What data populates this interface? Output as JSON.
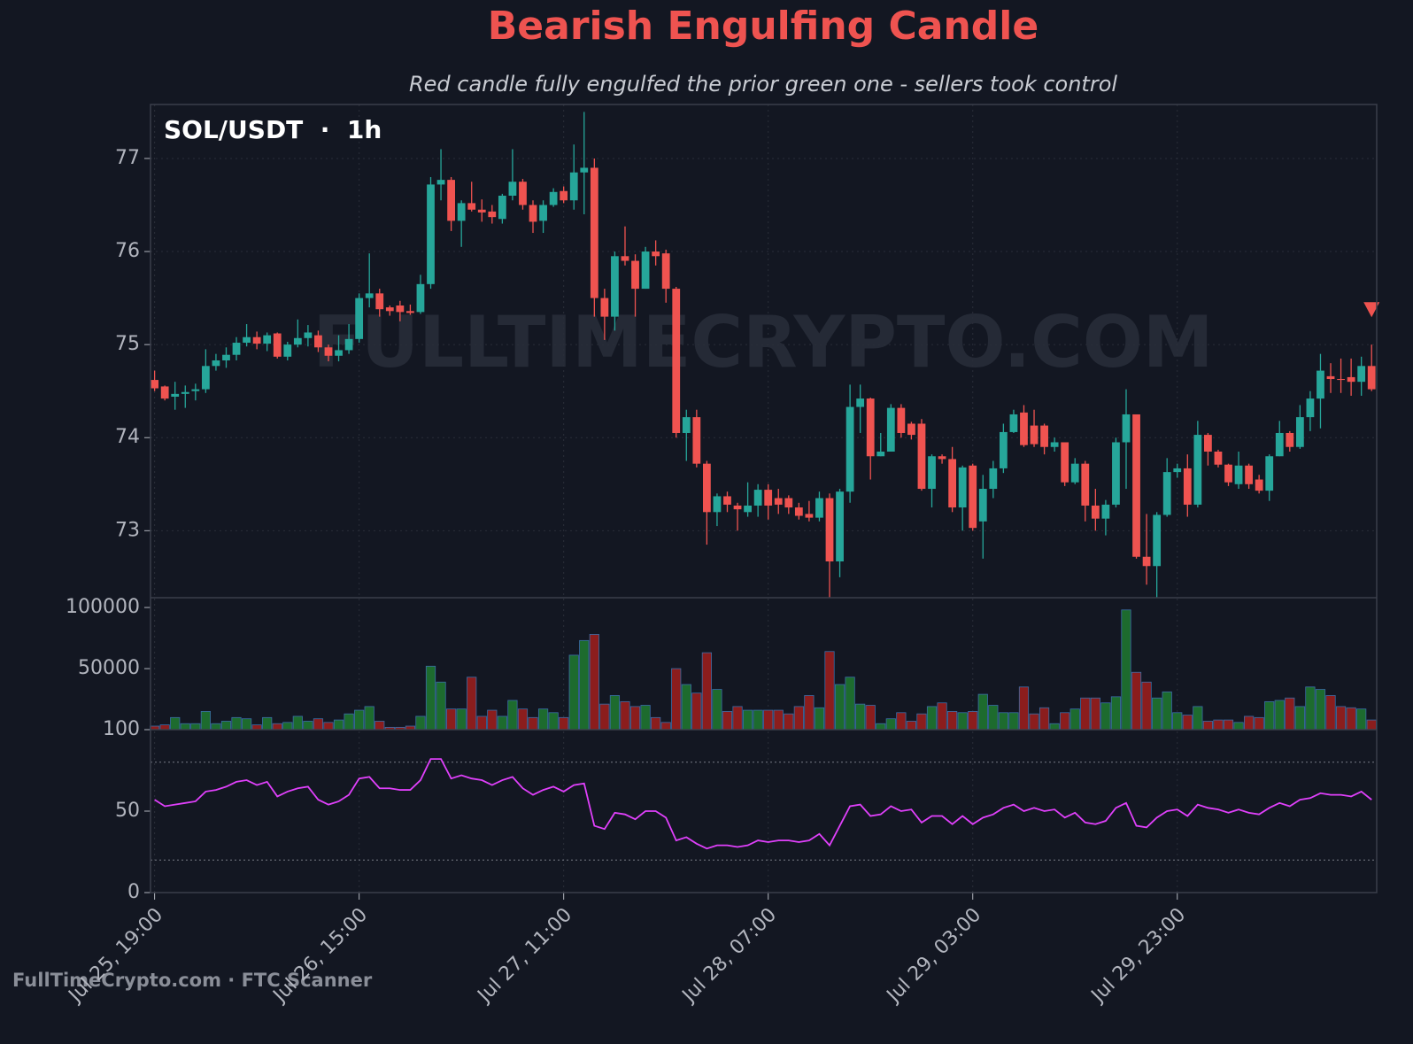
{
  "chart_data": {
    "type": "candlestick",
    "title": "Bearish Engulfing Candle",
    "subtitle": "Red candle fully engulfed the prior green one - sellers took control",
    "symbol_label": "SOL/USDT  ·  1h",
    "watermark": "FULLTIMECRYPTO.COM",
    "footer": "FullTimeCrypto.com · FTC Scanner",
    "up_color": "#26a69a",
    "down_color": "#ef5350",
    "volume_up_color": "#1d6b2e",
    "volume_down_color": "#8b1d1d",
    "rsi_color": "#e040fb",
    "xlim": [
      -0.4,
      119.5
    ],
    "xticks": [
      {
        "value": 0,
        "label": "Jul 25, 19:00"
      },
      {
        "value": 20,
        "label": "Jul 26, 15:00"
      },
      {
        "value": 40,
        "label": "Jul 27, 11:00"
      },
      {
        "value": 60,
        "label": "Jul 28, 07:00"
      },
      {
        "value": 80,
        "label": "Jul 29, 03:00"
      },
      {
        "value": 100,
        "label": "Jul 29, 23:00"
      }
    ],
    "ylim": [
      72.28,
      77.58
    ],
    "yticks": [
      73,
      74,
      75,
      76,
      77
    ],
    "volume_ylim": [
      100,
      108000
    ],
    "volume_yticks": [
      100,
      50000,
      100000
    ],
    "rsi_ylim": [
      0,
      100
    ],
    "rsi_yticks": [
      0,
      50
    ],
    "rsi_levels": [
      20,
      80
    ],
    "grid": true,
    "open": [
      74.62,
      74.55,
      74.44,
      74.47,
      74.5,
      74.52,
      74.77,
      74.83,
      74.89,
      75.02,
      75.08,
      75.01,
      75.12,
      74.87,
      75.0,
      75.07,
      75.1,
      74.97,
      74.88,
      74.94,
      75.06,
      75.5,
      75.55,
      75.4,
      75.42,
      75.36,
      75.35,
      75.65,
      76.72,
      76.77,
      76.33,
      76.52,
      76.45,
      76.43,
      76.35,
      76.6,
      76.75,
      76.5,
      76.33,
      76.5,
      76.65,
      76.55,
      76.85,
      76.9,
      75.5,
      75.3,
      75.95,
      75.9,
      75.6,
      76.0,
      75.98,
      75.6,
      74.05,
      74.22,
      73.72,
      73.2,
      73.37,
      73.27,
      73.2,
      73.27,
      73.44,
      73.35,
      73.35,
      73.25,
      73.18,
      73.14,
      73.35,
      72.67,
      73.42,
      74.33,
      74.42,
      73.8,
      73.85,
      74.32,
      74.15,
      74.15,
      73.45,
      73.8,
      73.77,
      73.25,
      73.7,
      73.1,
      73.45,
      73.67,
      74.06,
      74.27,
      74.13,
      74.13,
      73.9,
      73.95,
      73.52,
      73.72,
      73.27,
      73.13,
      73.28,
      73.95,
      74.25,
      72.72,
      72.62,
      73.17,
      73.63,
      73.67,
      73.28,
      74.03,
      73.85,
      73.71,
      73.5,
      73.7,
      73.55,
      73.43,
      73.8,
      74.05,
      73.9,
      74.22,
      74.42,
      74.66,
      74.63,
      74.65,
      74.6,
      74.77
    ],
    "high": [
      74.72,
      74.56,
      74.6,
      74.56,
      74.58,
      74.95,
      74.9,
      74.97,
      75.08,
      75.22,
      75.14,
      75.13,
      75.13,
      75.03,
      75.27,
      75.21,
      75.15,
      75.0,
      75.1,
      75.22,
      75.55,
      75.98,
      75.6,
      75.42,
      75.47,
      75.43,
      75.75,
      76.8,
      77.1,
      76.8,
      76.55,
      76.75,
      76.56,
      76.5,
      76.62,
      77.1,
      76.78,
      76.55,
      76.55,
      76.68,
      76.7,
      77.15,
      77.5,
      77.0,
      75.6,
      76.0,
      76.27,
      75.97,
      76.05,
      76.12,
      76.02,
      75.62,
      74.3,
      74.3,
      73.75,
      73.4,
      73.42,
      73.3,
      73.52,
      73.5,
      73.5,
      73.45,
      73.38,
      73.3,
      73.32,
      73.42,
      73.4,
      73.45,
      74.57,
      74.57,
      74.43,
      74.05,
      74.36,
      74.36,
      74.17,
      74.2,
      73.82,
      73.82,
      73.9,
      73.7,
      73.72,
      73.6,
      73.75,
      74.15,
      74.3,
      74.35,
      74.3,
      74.15,
      74.0,
      73.95,
      73.78,
      73.75,
      73.45,
      73.33,
      74.0,
      74.52,
      74.25,
      73.18,
      73.2,
      73.78,
      73.72,
      73.82,
      74.18,
      74.05,
      73.87,
      73.72,
      73.85,
      73.72,
      73.6,
      73.82,
      74.18,
      74.07,
      74.35,
      74.5,
      74.9,
      74.8,
      74.85,
      74.85,
      74.87,
      75.0
    ],
    "low": [
      74.5,
      74.4,
      74.3,
      74.32,
      74.4,
      74.48,
      74.72,
      74.75,
      74.83,
      74.98,
      74.95,
      74.93,
      74.85,
      74.83,
      74.97,
      74.98,
      74.92,
      74.82,
      74.82,
      74.9,
      75.02,
      75.4,
      75.3,
      75.31,
      75.25,
      75.32,
      75.33,
      75.6,
      76.55,
      76.22,
      76.05,
      76.43,
      76.32,
      76.3,
      76.3,
      76.55,
      76.45,
      76.2,
      76.2,
      76.48,
      76.52,
      76.45,
      76.4,
      75.3,
      75.05,
      75.15,
      75.85,
      75.3,
      75.6,
      75.85,
      75.45,
      74.0,
      73.75,
      73.68,
      72.85,
      73.05,
      73.2,
      73.0,
      73.15,
      73.15,
      73.12,
      73.18,
      73.18,
      73.12,
      73.1,
      73.1,
      72.28,
      72.5,
      73.3,
      74.05,
      73.55,
      73.8,
      73.85,
      74.0,
      73.98,
      73.43,
      73.25,
      73.72,
      73.2,
      73.0,
      73.0,
      72.7,
      73.35,
      73.62,
      74.05,
      73.9,
      73.9,
      73.82,
      73.85,
      73.48,
      73.5,
      73.1,
      73.0,
      72.95,
      73.25,
      73.45,
      72.7,
      72.42,
      72.28,
      73.15,
      73.57,
      73.15,
      73.25,
      73.7,
      73.68,
      73.48,
      73.45,
      73.45,
      73.4,
      73.32,
      73.8,
      73.85,
      73.88,
      74.07,
      74.1,
      74.48,
      74.48,
      74.45,
      74.45,
      74.5
    ],
    "close": [
      74.53,
      74.42,
      74.47,
      74.49,
      74.52,
      74.77,
      74.83,
      74.89,
      75.02,
      75.08,
      75.01,
      75.1,
      74.87,
      75.0,
      75.07,
      75.13,
      74.97,
      74.88,
      74.94,
      75.06,
      75.5,
      75.55,
      75.38,
      75.36,
      75.35,
      75.34,
      75.65,
      76.72,
      76.77,
      76.33,
      76.52,
      76.45,
      76.42,
      76.37,
      76.6,
      76.75,
      76.5,
      76.32,
      76.5,
      76.64,
      76.55,
      76.85,
      76.9,
      75.5,
      75.3,
      75.95,
      75.9,
      75.6,
      76.0,
      75.95,
      75.6,
      74.05,
      74.22,
      73.72,
      73.2,
      73.37,
      73.28,
      73.23,
      73.27,
      73.44,
      73.27,
      73.28,
      73.25,
      73.16,
      73.14,
      73.35,
      72.67,
      73.42,
      74.33,
      74.42,
      73.8,
      73.85,
      74.32,
      74.05,
      74.03,
      73.45,
      73.8,
      73.77,
      73.25,
      73.68,
      73.03,
      73.45,
      73.67,
      74.06,
      74.25,
      73.92,
      73.93,
      73.9,
      73.95,
      73.52,
      73.72,
      73.27,
      73.13,
      73.28,
      73.95,
      74.25,
      72.72,
      72.62,
      73.17,
      73.63,
      73.67,
      73.28,
      74.03,
      73.85,
      73.71,
      73.52,
      73.7,
      73.5,
      73.43,
      73.8,
      74.05,
      73.9,
      74.22,
      74.42,
      74.72,
      74.63,
      74.62,
      74.6,
      74.77,
      74.52
    ],
    "volume": [
      3000,
      4000,
      10000,
      5000,
      5000,
      15000,
      5000,
      7000,
      10000,
      9000,
      4000,
      10000,
      5000,
      6000,
      11000,
      7000,
      9000,
      6000,
      8000,
      13000,
      16000,
      19000,
      7000,
      2000,
      2000,
      3000,
      11000,
      52000,
      39000,
      17000,
      17000,
      43000,
      11000,
      16000,
      11000,
      24000,
      17000,
      10000,
      17000,
      14000,
      10000,
      61000,
      73000,
      78000,
      21000,
      28000,
      23000,
      19000,
      20000,
      10000,
      6000,
      50000,
      37000,
      30000,
      63000,
      33000,
      15000,
      19000,
      16000,
      16000,
      16000,
      16000,
      13000,
      19000,
      28000,
      18000,
      64000,
      37000,
      43000,
      21000,
      20000,
      5000,
      9000,
      14000,
      7000,
      13000,
      19000,
      22000,
      15000,
      14000,
      15000,
      29000,
      20000,
      14000,
      14000,
      35000,
      13000,
      18000,
      5000,
      14000,
      17000,
      26000,
      26000,
      22000,
      27000,
      98000,
      47000,
      39000,
      26000,
      31000,
      14000,
      12000,
      19000,
      7000,
      8000,
      8000,
      6000,
      11000,
      10000,
      23000,
      24000,
      26000,
      19000,
      35000,
      33000,
      28000,
      19000,
      18000,
      17000,
      8000
    ],
    "rsi": [
      57,
      53,
      54,
      55,
      56,
      62,
      63,
      65,
      68,
      69,
      66,
      68,
      59,
      62,
      64,
      65,
      57,
      54,
      56,
      60,
      70,
      71,
      64,
      64,
      63,
      63,
      69,
      82,
      82,
      70,
      72,
      70,
      69,
      66,
      69,
      71,
      64,
      60,
      63,
      65,
      62,
      66,
      67,
      41,
      39,
      49,
      48,
      45,
      50,
      50,
      46,
      32,
      34,
      30,
      27,
      29,
      29,
      28,
      29,
      32,
      31,
      32,
      32,
      31,
      32,
      36,
      29,
      41,
      53,
      54,
      47,
      48,
      53,
      50,
      51,
      43,
      47,
      47,
      42,
      47,
      42,
      46,
      48,
      52,
      54,
      50,
      52,
      50,
      51,
      46,
      49,
      43,
      42,
      44,
      52,
      55,
      41,
      40,
      46,
      50,
      51,
      47,
      54,
      52,
      51,
      49,
      51,
      49,
      48,
      52,
      55,
      53,
      57,
      58,
      61,
      60,
      60,
      59,
      62,
      57
    ],
    "signal_price": 75.37
  }
}
